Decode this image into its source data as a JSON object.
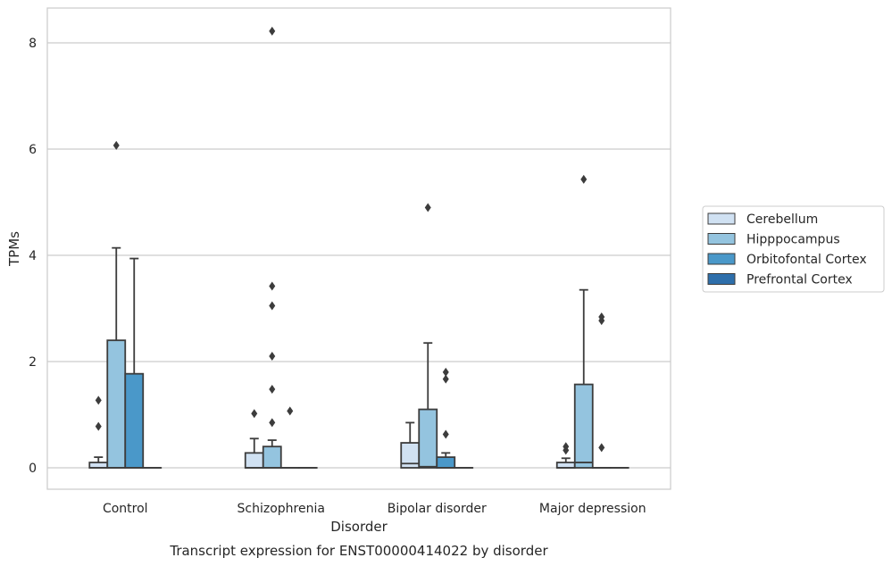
{
  "chart_data": {
    "type": "box",
    "title": "",
    "caption": "Transcript expression for ENST00000414022 by disorder",
    "xlabel": "Disorder",
    "ylabel": "TPMs",
    "ylim": [
      -0.4,
      8.65
    ],
    "yticks": [
      0,
      2,
      4,
      6,
      8
    ],
    "grid": "horizontal",
    "legend_position": "right",
    "categories": [
      "Control",
      "Schizophrenia",
      "Bipolar disorder",
      "Major depression"
    ],
    "series": [
      {
        "name": "Cerebellum",
        "color": "#d0e1f2",
        "boxes": [
          {
            "q1": 0,
            "median": 0,
            "q3": 0.1,
            "whisker_low": 0,
            "whisker_high": 0.2,
            "outliers": [
              0.78,
              1.27
            ]
          },
          {
            "q1": 0,
            "median": 0,
            "q3": 0.28,
            "whisker_low": 0,
            "whisker_high": 0.55,
            "outliers": [
              1.02
            ]
          },
          {
            "q1": 0,
            "median": 0.08,
            "q3": 0.47,
            "whisker_low": 0,
            "whisker_high": 0.85,
            "outliers": []
          },
          {
            "q1": 0,
            "median": 0,
            "q3": 0.1,
            "whisker_low": 0,
            "whisker_high": 0.18,
            "outliers": [
              0.33,
              0.4
            ]
          }
        ]
      },
      {
        "name": "Hipppocampus",
        "color": "#94c4df",
        "boxes": [
          {
            "q1": 0,
            "median": 0,
            "q3": 2.4,
            "whisker_low": 0,
            "whisker_high": 4.14,
            "outliers": [
              6.07
            ]
          },
          {
            "q1": 0,
            "median": 0,
            "q3": 0.4,
            "whisker_low": 0,
            "whisker_high": 0.52,
            "outliers": [
              0.85,
              1.48,
              2.1,
              3.05,
              3.42,
              8.22
            ]
          },
          {
            "q1": 0,
            "median": 0.02,
            "q3": 1.1,
            "whisker_low": 0,
            "whisker_high": 2.35,
            "outliers": [
              4.9
            ]
          },
          {
            "q1": 0,
            "median": 0.1,
            "q3": 1.57,
            "whisker_low": 0,
            "whisker_high": 3.35,
            "outliers": [
              5.43
            ]
          }
        ]
      },
      {
        "name": "Orbitofontal Cortex",
        "color": "#4a98c9",
        "boxes": [
          {
            "q1": 0,
            "median": 0,
            "q3": 1.77,
            "whisker_low": 0,
            "whisker_high": 3.94,
            "outliers": []
          },
          {
            "q1": 0,
            "median": 0,
            "q3": 0,
            "whisker_low": 0,
            "whisker_high": 0,
            "outliers": [
              1.07
            ]
          },
          {
            "q1": 0,
            "median": 0,
            "q3": 0.2,
            "whisker_low": 0,
            "whisker_high": 0.28,
            "outliers": [
              0.63,
              1.67,
              1.8
            ]
          },
          {
            "q1": 0,
            "median": 0,
            "q3": 0,
            "whisker_low": 0,
            "whisker_high": 0,
            "outliers": [
              0.38,
              2.77,
              2.84
            ]
          }
        ]
      },
      {
        "name": "Prefrontal Cortex",
        "color": "#2e6fab",
        "boxes": [
          {
            "q1": 0,
            "median": 0,
            "q3": 0,
            "whisker_low": 0,
            "whisker_high": 0,
            "outliers": []
          },
          {
            "q1": 0,
            "median": 0,
            "q3": 0,
            "whisker_low": 0,
            "whisker_high": 0,
            "outliers": []
          },
          {
            "q1": 0,
            "median": 0,
            "q3": 0,
            "whisker_low": 0,
            "whisker_high": 0,
            "outliers": []
          },
          {
            "q1": 0,
            "median": 0,
            "q3": 0,
            "whisker_low": 0,
            "whisker_high": 0,
            "outliers": []
          }
        ]
      }
    ]
  }
}
